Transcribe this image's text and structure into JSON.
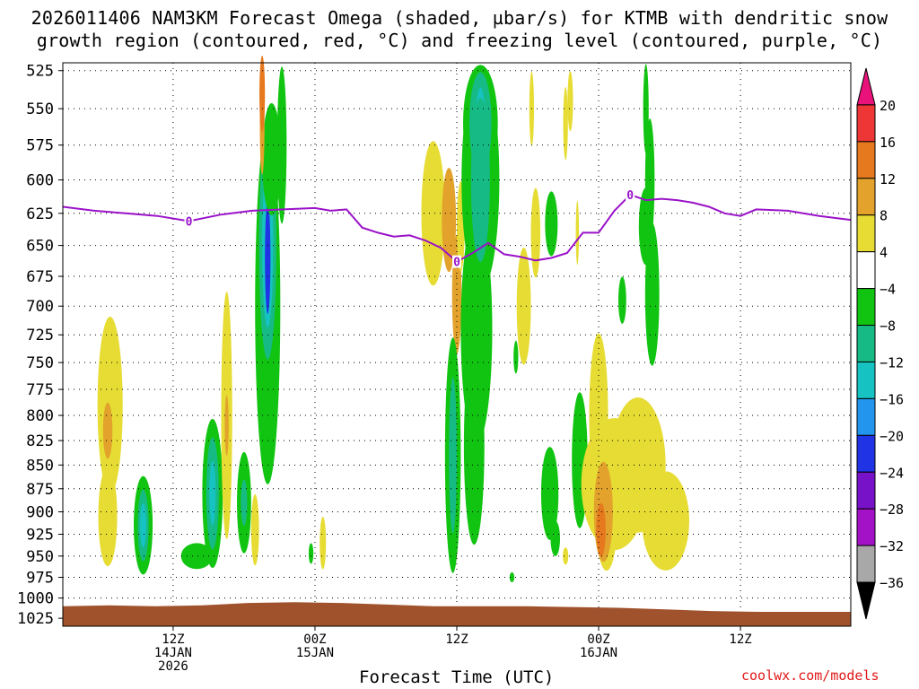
{
  "title_line1": "2026011406 NAM3KM Forecast Omega (shaded, µbar/s) for KTMB with dendritic snow",
  "title_line2": "growth region (contoured, red, °C) and freezing level (contoured, purple, °C)",
  "xlabel": "Forecast Time (UTC)",
  "credit": "coolwx.com/models",
  "chart_data": {
    "type": "heatmap",
    "y_axis": {
      "label": "",
      "ticks": [
        525,
        550,
        575,
        600,
        625,
        650,
        675,
        700,
        725,
        750,
        775,
        800,
        825,
        850,
        875,
        900,
        925,
        950,
        975,
        1000,
        1025
      ],
      "ylim": [
        1035,
        520
      ],
      "scale": "pressure (log)",
      "grid": true
    },
    "x_axis": {
      "label": "Forecast Time (UTC)",
      "xlim": [
        -8,
        92
      ],
      "ticks": [
        {
          "hour": 6,
          "lines": [
            "12Z",
            "14JAN",
            "2026"
          ]
        },
        {
          "hour": 24,
          "lines": [
            "00Z",
            "15JAN"
          ]
        },
        {
          "hour": 42,
          "lines": [
            "12Z"
          ]
        },
        {
          "hour": 60,
          "lines": [
            "00Z",
            "16JAN"
          ]
        },
        {
          "hour": 78,
          "lines": [
            "12Z"
          ]
        }
      ],
      "grid": true
    },
    "colorbar": {
      "labels": [
        "20",
        "16",
        "12",
        "8",
        "4",
        "−4",
        "−8",
        "−12",
        "−16",
        "−20",
        "−24",
        "−28",
        "−32",
        "−36"
      ],
      "levels": [
        {
          "range": "> 20",
          "color": "#e8127a"
        },
        {
          "range": "16 to 20",
          "color": "#ee3636"
        },
        {
          "range": "12 to 16",
          "color": "#e6781e"
        },
        {
          "range": "8 to 12",
          "color": "#e2a22c"
        },
        {
          "range": "4 to 8",
          "color": "#e6dc34"
        },
        {
          "range": "-4 to 4",
          "color": "#ffffff"
        },
        {
          "range": "-8 to -4",
          "color": "#12c412"
        },
        {
          "range": "-12 to -8",
          "color": "#16ba84"
        },
        {
          "range": "-16 to -12",
          "color": "#16c2c2"
        },
        {
          "range": "-20 to -16",
          "color": "#2296ee"
        },
        {
          "range": "-24 to -20",
          "color": "#2034e6"
        },
        {
          "range": "-28 to -24",
          "color": "#7812c8"
        },
        {
          "range": "-32 to -28",
          "color": "#a412c8"
        },
        {
          "range": "-36 to -32",
          "color": "#a8a8a8"
        },
        {
          "range": "< -36",
          "color": "#000000"
        }
      ]
    },
    "freezing_level": {
      "label": "0",
      "color": "#9a12c8",
      "hours": [
        -8,
        -4,
        0,
        4,
        8,
        12,
        16,
        20,
        24,
        26,
        28,
        30,
        32,
        34,
        36,
        38,
        40,
        42,
        44,
        46,
        48,
        50,
        52,
        54,
        56,
        58,
        60,
        62,
        64,
        66,
        68,
        70,
        72,
        74,
        76,
        78,
        80,
        84,
        88,
        92
      ],
      "pressure": [
        620,
        623,
        625,
        627,
        631,
        626,
        623,
        622,
        621,
        623,
        622,
        636,
        640,
        643,
        642,
        646,
        652,
        663,
        656,
        648,
        657,
        659,
        662,
        660,
        656,
        640,
        640,
        623,
        611,
        615,
        614,
        615,
        617,
        620,
        625,
        627,
        622,
        623,
        627,
        630
      ]
    },
    "terrain": {
      "color": "#a0522d",
      "surface_pressure": [
        1010,
        1009,
        1010,
        1009,
        1006,
        1005,
        1006,
        1008,
        1010,
        1010,
        1010,
        1011,
        1012,
        1014,
        1016,
        1017,
        1017,
        1017
      ]
    },
    "omega_features": [
      {
        "name": "rising motion column near 15JAN early",
        "hours": [
          16,
          20
        ],
        "p_range": [
          590,
          780
        ],
        "min_omega": -24
      },
      {
        "name": "rising motion column near 15JAN 12Z",
        "hours": [
          43,
          46
        ],
        "p_range": [
          525,
          930
        ],
        "min_omega": -16
      },
      {
        "name": "sinking motion near 16JAN 00Z low levels",
        "hours": [
          59,
          66
        ],
        "p_range": [
          760,
          970
        ],
        "max_omega": 12
      }
    ]
  }
}
